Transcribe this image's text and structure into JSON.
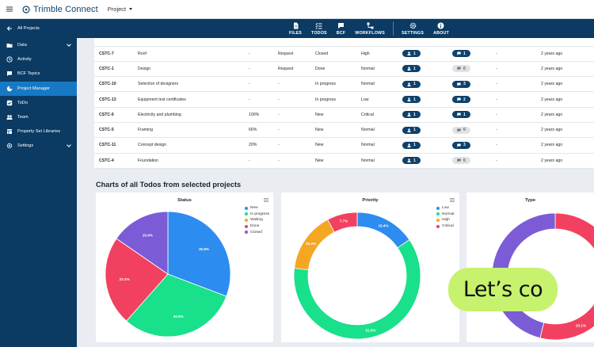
{
  "app": {
    "brand": "Trimble Connect",
    "project_selector": "Project"
  },
  "sidebar": {
    "items": [
      {
        "label": "All Projects",
        "icon": "arrow-left-icon"
      },
      {
        "label": "Data",
        "icon": "folder-icon",
        "expand": true
      },
      {
        "label": "Activity",
        "icon": "clock-icon"
      },
      {
        "label": "BCF Topics",
        "icon": "bcf-icon"
      },
      {
        "label": "Project Manager",
        "icon": "project-manager-icon",
        "active": true
      },
      {
        "label": "ToDo",
        "icon": "todo-icon"
      },
      {
        "label": "Team",
        "icon": "team-icon"
      },
      {
        "label": "Property Set Libraries",
        "icon": "library-icon"
      },
      {
        "label": "Settings",
        "icon": "gear-icon",
        "expand": true
      }
    ]
  },
  "toolbar": {
    "buttons": [
      {
        "label": "FILES",
        "icon": "files-icon"
      },
      {
        "label": "TODOS",
        "icon": "todos-icon"
      },
      {
        "label": "BCF",
        "icon": "bcf-icon"
      },
      {
        "label": "WORKFLOWS",
        "icon": "workflows-icon"
      },
      {
        "label": "SETTINGS",
        "icon": "gear-icon"
      },
      {
        "label": "ABOUT",
        "icon": "info-icon"
      }
    ]
  },
  "table": {
    "rows": [
      {
        "id": "CSTC-7",
        "title": "Roof",
        "progress": "-",
        "type": "Request",
        "status": "Closed",
        "priority": "High",
        "assignees": "1",
        "comments": "1",
        "comments_zero": false,
        "due": "-",
        "created": "2 years ago"
      },
      {
        "id": "CSTC-1",
        "title": "Design",
        "progress": "-",
        "type": "Request",
        "status": "Done",
        "priority": "Normal",
        "assignees": "1",
        "comments": "0",
        "comments_zero": true,
        "due": "-",
        "created": "2 years ago"
      },
      {
        "id": "CSTC-10",
        "title": "Selection of designers",
        "progress": "-",
        "type": "-",
        "status": "In progress",
        "priority": "Normal",
        "assignees": "1",
        "comments": "3",
        "comments_zero": false,
        "due": "-",
        "created": "2 years ago"
      },
      {
        "id": "CSTC-13",
        "title": "Equipment test certificates",
        "progress": "-",
        "type": "-",
        "status": "In progress",
        "priority": "Low",
        "assignees": "1",
        "comments": "2",
        "comments_zero": false,
        "due": "-",
        "created": "2 years ago"
      },
      {
        "id": "CSTC-6",
        "title": "Electricity and plumbing",
        "progress": "100%",
        "type": "-",
        "status": "New",
        "priority": "Critical",
        "assignees": "1",
        "comments": "1",
        "comments_zero": false,
        "due": "-",
        "created": "2 years ago"
      },
      {
        "id": "CSTC-5",
        "title": "Framing",
        "progress": "66%",
        "type": "-",
        "status": "New",
        "priority": "Normal",
        "assignees": "1",
        "comments": "0",
        "comments_zero": true,
        "due": "-",
        "created": "2 years ago"
      },
      {
        "id": "CSTC-11",
        "title": "Concept design",
        "progress": "20%",
        "type": "-",
        "status": "New",
        "priority": "Normal",
        "assignees": "1",
        "comments": "3",
        "comments_zero": false,
        "due": "-",
        "created": "2 years ago"
      },
      {
        "id": "CSTC-4",
        "title": "Foundation",
        "progress": "-",
        "type": "-",
        "status": "New",
        "priority": "Normal",
        "assignees": "1",
        "comments": "0",
        "comments_zero": true,
        "due": "-",
        "created": "2 years ago"
      }
    ]
  },
  "section_title": "Charts of all Todos from selected projects",
  "chart_data": [
    {
      "type": "pie",
      "title": "Status",
      "categories": [
        "New",
        "In progress",
        "Waiting",
        "Done",
        "Closed"
      ],
      "values": [
        30.8,
        30.8,
        0,
        23.1,
        15.4
      ],
      "labels": [
        "30.8%",
        "30.8%",
        "",
        "23.1%",
        "15.4%"
      ],
      "colors": [
        "#2d8cf0",
        "#19e08a",
        "#f5a623",
        "#f24160",
        "#7b5cd6"
      ],
      "legend": "right"
    },
    {
      "type": "pie",
      "donut": true,
      "title": "Priority",
      "categories": [
        "Low",
        "Normal",
        "High",
        "Critical"
      ],
      "values": [
        15.4,
        61.5,
        15.4,
        7.7
      ],
      "labels": [
        "15.4%",
        "61.5%",
        "15.4%",
        "7.7%"
      ],
      "colors": [
        "#2d8cf0",
        "#19e08a",
        "#f5a623",
        "#f24160"
      ],
      "legend": "right"
    },
    {
      "type": "pie",
      "donut": true,
      "title": "Type",
      "values": [
        30.8,
        23.1,
        46.2
      ],
      "labels": [
        "30.8%",
        "23.1%",
        "46.2%"
      ],
      "colors": [
        "#f24160",
        "#f24160",
        "#7b5cd6"
      ]
    }
  ],
  "promo": {
    "text": "Let’s co"
  },
  "colors": {
    "sidebar": "#0b3a63",
    "active": "#1779c4",
    "pill": "#0e416c",
    "promo": "#c6f26e"
  }
}
